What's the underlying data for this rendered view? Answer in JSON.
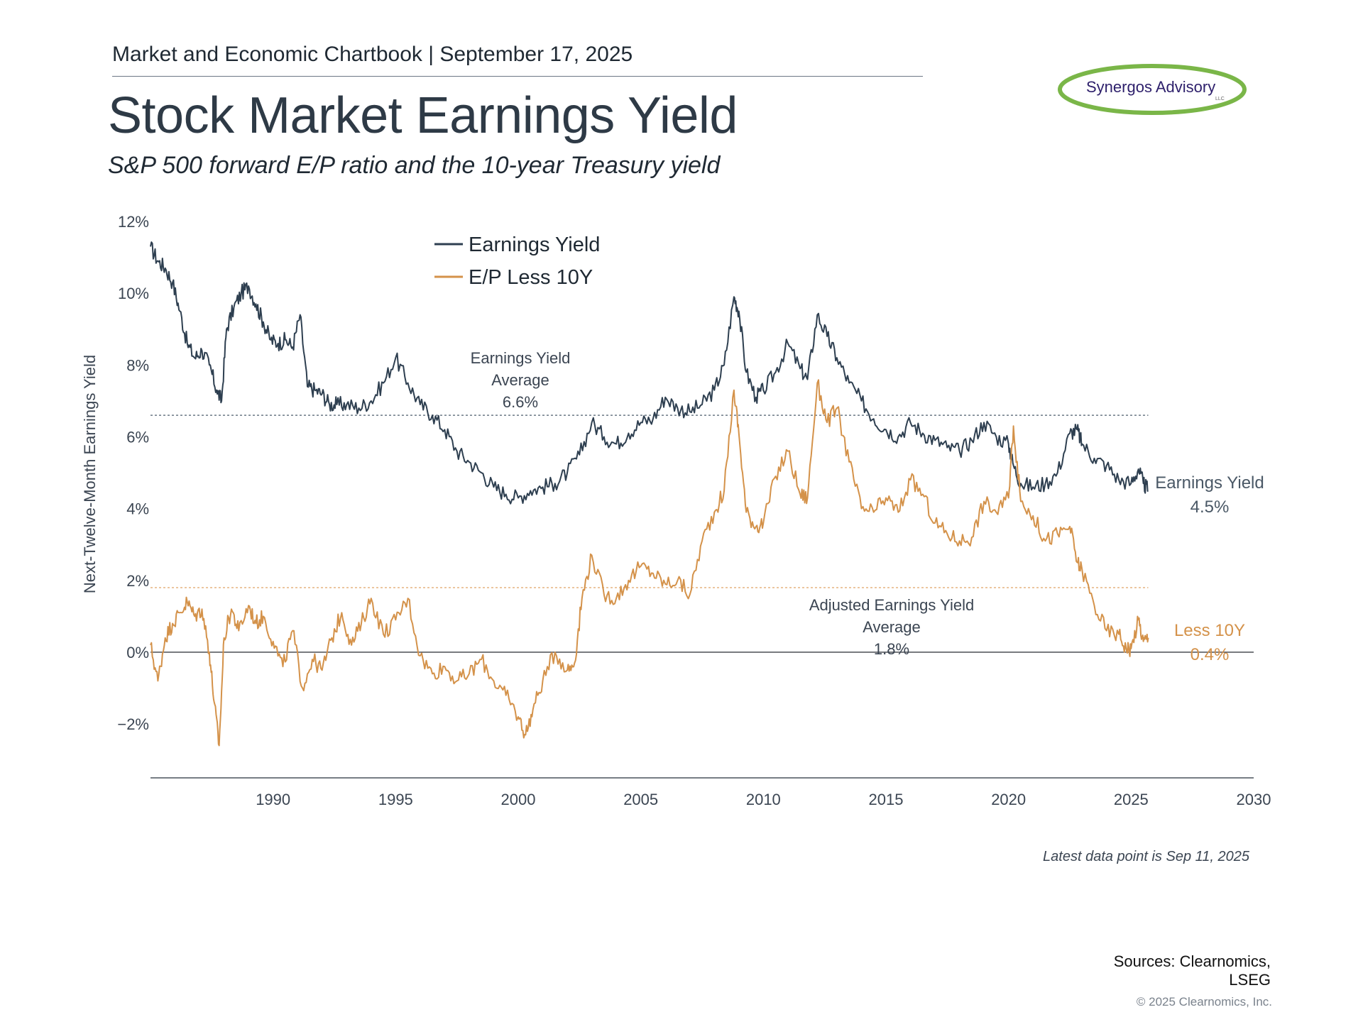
{
  "header": {
    "kicker": "Market and Economic Chartbook | September 17, 2025",
    "title": "Stock Market Earnings Yield",
    "subtitle": "S&P 500 forward E/P ratio and the 10-year Treasury yield"
  },
  "logo": {
    "text": "Synergos Advisory",
    "suffix": "LLC",
    "ring_color": "#7ab648",
    "text_color": "#2d1f6b"
  },
  "footer": {
    "note": "Latest data point is Sep 11, 2025",
    "sources_line1": "Sources: Clearnomics,",
    "sources_line2": "LSEG",
    "copyright": "© 2025 Clearnomics, Inc."
  },
  "chart_data": {
    "type": "line",
    "title": "Stock Market Earnings Yield",
    "ylabel": "Next-Twelve-Month Earnings Yield",
    "xlabel": "",
    "xlim": [
      1985,
      2030
    ],
    "ylim": [
      -3.5,
      12
    ],
    "x_ticks": [
      1990,
      1995,
      2000,
      2005,
      2010,
      2015,
      2020,
      2025,
      2030
    ],
    "y_ticks": [
      {
        "value": 12,
        "label": "12%"
      },
      {
        "value": 10,
        "label": "10%"
      },
      {
        "value": 8,
        "label": "8%"
      },
      {
        "value": 6,
        "label": "6%"
      },
      {
        "value": 4,
        "label": "4%"
      },
      {
        "value": 2,
        "label": "2%"
      },
      {
        "value": 0,
        "label": "0%"
      },
      {
        "value": -2,
        "label": "−2%"
      }
    ],
    "grid": false,
    "legend": {
      "placement": "top-left",
      "entries": [
        {
          "label": "Earnings Yield",
          "color": "#2e3f50"
        },
        {
          "label": "E/P Less 10Y",
          "color": "#d4924a"
        }
      ]
    },
    "series": [
      {
        "name": "Earnings Yield",
        "color": "#2e3f50",
        "x": [
          1985.0,
          1985.3,
          1985.6,
          1985.9,
          1986.2,
          1986.5,
          1986.8,
          1987.1,
          1987.4,
          1987.7,
          1987.9,
          1988.1,
          1988.4,
          1988.7,
          1989.0,
          1989.3,
          1989.6,
          1989.9,
          1990.2,
          1990.5,
          1990.8,
          1991.1,
          1991.4,
          1991.7,
          1992.0,
          1992.3,
          1992.6,
          1993.0,
          1993.5,
          1994.0,
          1994.5,
          1995.0,
          1995.5,
          1996.0,
          1996.5,
          1997.0,
          1997.5,
          1998.0,
          1998.5,
          1999.0,
          1999.5,
          2000.0,
          2000.5,
          2001.0,
          2001.5,
          2002.0,
          2002.5,
          2003.0,
          2003.5,
          2004.0,
          2004.5,
          2005.0,
          2005.5,
          2006.0,
          2006.5,
          2007.0,
          2007.5,
          2008.0,
          2008.4,
          2008.8,
          2009.0,
          2009.3,
          2009.7,
          2010.0,
          2010.5,
          2011.0,
          2011.5,
          2011.8,
          2012.2,
          2012.6,
          2013.0,
          2013.5,
          2014.0,
          2014.5,
          2015.0,
          2015.5,
          2016.0,
          2016.5,
          2017.0,
          2017.5,
          2018.0,
          2018.5,
          2019.0,
          2019.5,
          2020.0,
          2020.2,
          2020.5,
          2021.0,
          2021.5,
          2022.0,
          2022.5,
          2022.8,
          2023.0,
          2023.5,
          2024.0,
          2024.5,
          2025.0,
          2025.3,
          2025.5,
          2025.7
        ],
        "values": [
          11.3,
          10.9,
          10.7,
          10.3,
          9.5,
          8.6,
          8.2,
          8.4,
          8.0,
          7.3,
          7.0,
          9.0,
          9.6,
          10.0,
          10.2,
          9.7,
          9.2,
          8.7,
          8.6,
          8.7,
          8.5,
          9.4,
          7.4,
          7.3,
          7.2,
          6.9,
          6.9,
          6.9,
          6.8,
          7.0,
          7.5,
          8.2,
          7.5,
          6.9,
          6.6,
          6.2,
          5.6,
          5.3,
          5.0,
          4.6,
          4.4,
          4.3,
          4.5,
          4.6,
          4.7,
          5.0,
          5.5,
          6.4,
          6.0,
          5.8,
          6.1,
          6.4,
          6.5,
          7.1,
          6.8,
          6.7,
          6.9,
          7.3,
          8.0,
          9.9,
          9.5,
          7.8,
          7.1,
          7.3,
          7.8,
          8.6,
          7.9,
          7.6,
          9.4,
          8.8,
          8.2,
          7.5,
          7.0,
          6.5,
          6.2,
          6.0,
          6.4,
          6.1,
          5.9,
          5.7,
          5.6,
          5.9,
          6.4,
          6.0,
          5.8,
          5.2,
          4.7,
          4.6,
          4.7,
          5.0,
          6.1,
          6.2,
          5.8,
          5.4,
          5.2,
          4.8,
          4.7,
          5.1,
          4.7,
          4.5
        ]
      },
      {
        "name": "E/P Less 10Y",
        "color": "#d4924a",
        "x": [
          1985.0,
          1985.3,
          1985.6,
          1985.9,
          1986.2,
          1986.5,
          1986.8,
          1987.1,
          1987.4,
          1987.6,
          1987.8,
          1988.0,
          1988.3,
          1988.6,
          1989.0,
          1989.3,
          1989.6,
          1990.0,
          1990.4,
          1990.8,
          1991.2,
          1991.6,
          1992.0,
          1992.4,
          1992.8,
          1993.2,
          1993.6,
          1994.0,
          1994.5,
          1995.0,
          1995.5,
          1996.0,
          1996.5,
          1997.0,
          1997.5,
          1998.0,
          1998.5,
          1999.0,
          1999.5,
          2000.0,
          2000.3,
          2000.6,
          2001.0,
          2001.5,
          2002.0,
          2002.3,
          2002.6,
          2003.0,
          2003.5,
          2004.0,
          2004.5,
          2005.0,
          2005.5,
          2006.0,
          2006.5,
          2007.0,
          2007.5,
          2008.0,
          2008.4,
          2008.8,
          2009.0,
          2009.3,
          2009.7,
          2010.0,
          2010.5,
          2011.0,
          2011.5,
          2011.8,
          2012.2,
          2012.6,
          2013.0,
          2013.5,
          2014.0,
          2014.5,
          2015.0,
          2015.5,
          2016.0,
          2016.5,
          2017.0,
          2017.5,
          2018.0,
          2018.5,
          2019.0,
          2019.5,
          2020.0,
          2020.2,
          2020.5,
          2021.0,
          2021.5,
          2022.0,
          2022.5,
          2022.8,
          2023.0,
          2023.5,
          2024.0,
          2024.5,
          2024.8,
          2025.0,
          2025.3,
          2025.5,
          2025.7
        ],
        "values": [
          0.2,
          -0.8,
          0.4,
          0.8,
          1.1,
          1.4,
          1.0,
          1.2,
          0.0,
          -1.4,
          -2.6,
          0.4,
          1.2,
          0.6,
          1.3,
          0.8,
          1.0,
          0.3,
          -0.4,
          0.6,
          -1.0,
          -0.2,
          -0.5,
          0.4,
          1.1,
          0.2,
          0.8,
          1.5,
          0.5,
          0.9,
          1.5,
          -0.1,
          -0.6,
          -0.4,
          -0.8,
          -0.6,
          -0.2,
          -0.8,
          -1.2,
          -1.8,
          -2.3,
          -1.6,
          -0.8,
          0.0,
          -0.5,
          -0.3,
          1.5,
          2.7,
          1.6,
          1.5,
          2.0,
          2.4,
          2.2,
          1.9,
          2.0,
          1.6,
          3.1,
          3.9,
          4.5,
          7.3,
          6.1,
          3.9,
          3.5,
          3.6,
          4.9,
          5.6,
          4.4,
          4.3,
          7.5,
          6.4,
          6.8,
          5.3,
          4.0,
          3.9,
          4.3,
          3.9,
          4.8,
          4.4,
          3.6,
          3.3,
          3.1,
          3.2,
          4.2,
          3.9,
          4.3,
          6.3,
          4.2,
          3.8,
          3.1,
          3.3,
          3.5,
          2.5,
          2.3,
          1.3,
          0.6,
          0.5,
          0.1,
          0.1,
          0.9,
          0.3,
          0.4
        ]
      }
    ],
    "reference_lines": [
      {
        "name": "Earnings Yield Average",
        "value": 6.6,
        "color": "#6b7785",
        "style": "dotted"
      },
      {
        "name": "Adjusted Earnings Yield Average",
        "value": 1.8,
        "color": "#e8b98a",
        "style": "dotted"
      },
      {
        "name": "zero",
        "value": 0,
        "color": "#3a3f45",
        "style": "solid"
      }
    ],
    "annotations": {
      "ey_avg_line1": "Earnings Yield",
      "ey_avg_line2": "Average",
      "ey_avg_value": "6.6%",
      "adj_avg_line1": "Adjusted Earnings Yield",
      "adj_avg_line2": "Average",
      "adj_avg_value": "1.8%",
      "ey_end_label": "Earnings Yield",
      "ey_end_value": "4.5%",
      "less_end_label": "Less 10Y",
      "less_end_value": "0.4%"
    }
  }
}
